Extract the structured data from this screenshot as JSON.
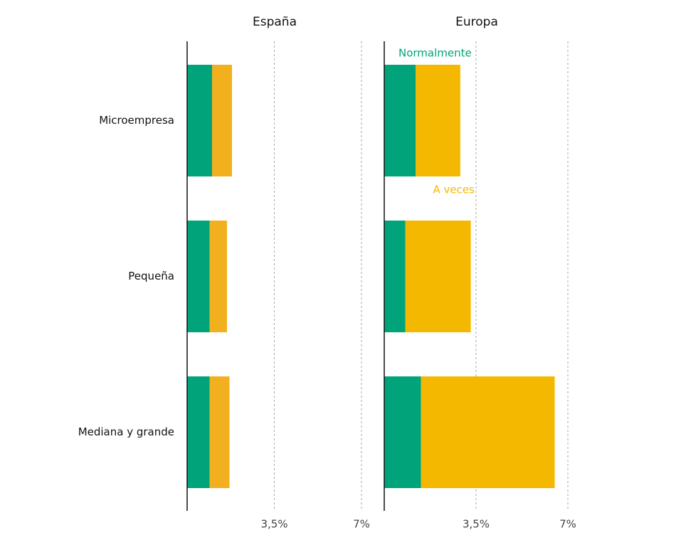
{
  "chart_data": [
    {
      "type": "bar",
      "orientation": "horizontal",
      "stacked": true,
      "title": "España",
      "categories": [
        "Microempresa",
        "Pequeña",
        "Mediana y grande"
      ],
      "series": [
        {
          "color": "#00a37a",
          "values": [
            1.0,
            0.9,
            0.9
          ]
        },
        {
          "color": "#f2b01e",
          "values": [
            0.8,
            0.7,
            0.8
          ]
        }
      ],
      "xlim": [
        0,
        7
      ],
      "xticks": [
        {
          "value": 3.5,
          "label": "3,5%"
        },
        {
          "value": 7,
          "label": "7%"
        }
      ],
      "grid": true
    },
    {
      "type": "bar",
      "orientation": "horizontal",
      "stacked": true,
      "title": "Europa",
      "series": [
        {
          "name": "Normalmente",
          "color": "#00a37a",
          "values": [
            1.2,
            0.8,
            1.4
          ]
        },
        {
          "name": "A veces",
          "color": "#f5b800",
          "values": [
            1.7,
            2.5,
            5.1
          ]
        }
      ],
      "xlim": [
        0,
        7
      ],
      "xticks": [
        {
          "value": 3.5,
          "label": "3,5%"
        },
        {
          "value": 7,
          "label": "7%"
        }
      ],
      "grid": true
    }
  ]
}
